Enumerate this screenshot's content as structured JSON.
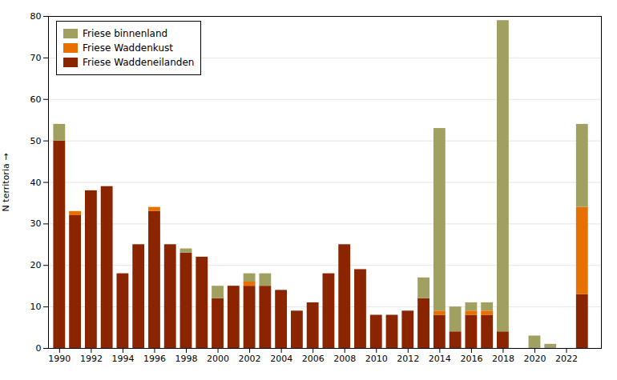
{
  "chart_data": {
    "type": "bar",
    "stacked": true,
    "ylabel": "N territoria",
    "x": [
      1990,
      1991,
      1992,
      1993,
      1994,
      1995,
      1996,
      1997,
      1998,
      1999,
      2000,
      2001,
      2002,
      2003,
      2004,
      2005,
      2006,
      2007,
      2008,
      2009,
      2010,
      2011,
      2012,
      2013,
      2014,
      2015,
      2016,
      2017,
      2018,
      2019,
      2020,
      2021,
      2022,
      2023
    ],
    "series": [
      {
        "name": "Friese Waddeneilanden",
        "color": "#8B2500",
        "values": [
          50,
          32,
          38,
          39,
          18,
          25,
          33,
          25,
          23,
          22,
          12,
          15,
          15,
          15,
          14,
          9,
          11,
          18,
          25,
          19,
          8,
          8,
          9,
          12,
          8,
          4,
          8,
          8,
          4,
          0,
          0,
          0,
          0,
          13
        ]
      },
      {
        "name": "Friese Waddenkust",
        "color": "#E87000",
        "values": [
          0,
          1,
          0,
          0,
          0,
          0,
          1,
          0,
          0,
          0,
          0,
          0,
          1,
          0,
          0,
          0,
          0,
          0,
          0,
          0,
          0,
          0,
          0,
          0,
          1,
          0,
          1,
          1,
          0,
          0,
          0,
          0,
          0,
          21
        ]
      },
      {
        "name": "Friese binnenland",
        "color": "#A0A060",
        "values": [
          4,
          0,
          0,
          0,
          0,
          0,
          0,
          0,
          1,
          0,
          3,
          0,
          2,
          3,
          0,
          0,
          0,
          0,
          0,
          0,
          0,
          0,
          0,
          5,
          44,
          6,
          2,
          2,
          75,
          0,
          3,
          1,
          0,
          20
        ]
      }
    ],
    "xlim": [
      1989.3,
      2024.2
    ],
    "xticks": [
      1990,
      1992,
      1994,
      1996,
      1998,
      2000,
      2002,
      2004,
      2006,
      2008,
      2010,
      2012,
      2014,
      2016,
      2018,
      2020,
      2022
    ],
    "ylim": [
      0,
      80
    ],
    "yticks": [
      0,
      10,
      20,
      30,
      40,
      50,
      60,
      70,
      80
    ],
    "grid": true,
    "legend": "upper left"
  }
}
